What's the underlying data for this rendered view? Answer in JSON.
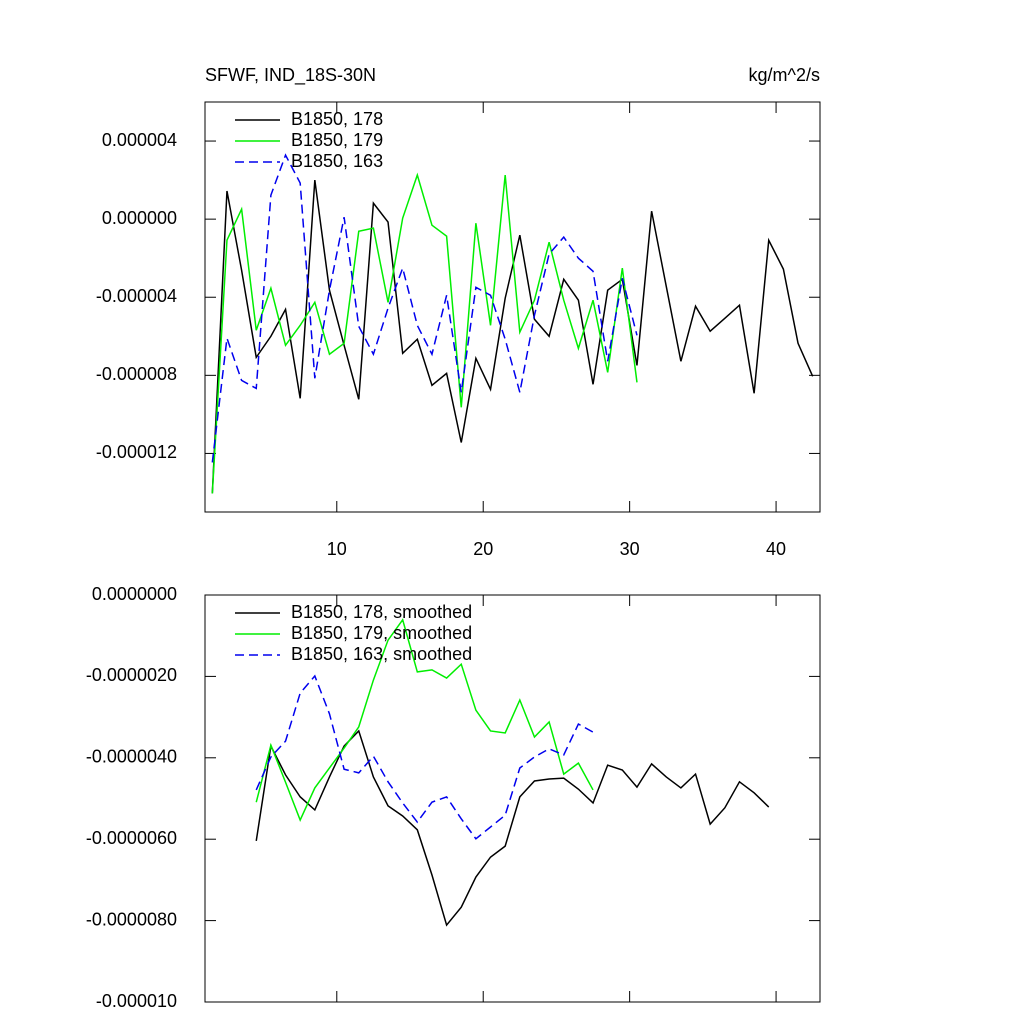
{
  "chart_data": [
    {
      "type": "line",
      "title": "SFWF, IND_18S-30N",
      "right_title": "kg/m^2/s",
      "xlim": [
        1,
        43
      ],
      "xticks": [
        10,
        20,
        30,
        40
      ],
      "show_xtick_labels": true,
      "ylim": [
        -1.5e-05,
        6e-06
      ],
      "yticks": [
        4e-06,
        {
          "value": 0,
          "label": "0.000000"
        },
        -4e-06,
        -8e-06,
        -1.2e-05
      ],
      "grid": false,
      "legend": "upper left",
      "series": [
        {
          "name": "B1850, 178",
          "color": "#000000",
          "line_style": "solid",
          "x": [
            1.5,
            2.5,
            3.5,
            4.5,
            5.5,
            6.5,
            7.5,
            8.5,
            9.5,
            10.5,
            11.5,
            12.5,
            13.5,
            14.5,
            15.5,
            16.5,
            17.5,
            18.5,
            19.5,
            20.5,
            21.5,
            22.5,
            23.5,
            24.5,
            25.5,
            26.5,
            27.5,
            28.5,
            29.5,
            30.5,
            31.5,
            32.5,
            33.5,
            34.5,
            35.5,
            36.5,
            37.5,
            38.5,
            39.5,
            40.5,
            41.5,
            42.5
          ],
          "values": [
            -1.405e-05,
            1.44e-06,
            -2.62e-06,
            -7.08e-06,
            -6e-06,
            -4.62e-06,
            -9.18e-06,
            2e-06,
            -3.64e-06,
            -6.46e-06,
            -9.23e-06,
            8.2e-07,
            -1.5e-07,
            -6.87e-06,
            -6.15e-06,
            -8.51e-06,
            -7.9e-06,
            -1.144e-05,
            -7.13e-06,
            -8.72e-06,
            -4.05e-06,
            -8.2e-07,
            -5.13e-06,
            -6e-06,
            -3.08e-06,
            -4.15e-06,
            -8.46e-06,
            -3.64e-06,
            -3.08e-06,
            -7.49e-06,
            4.1e-07,
            -3.44e-06,
            -7.28e-06,
            -4.46e-06,
            -5.74e-06,
            -5.08e-06,
            -4.41e-06,
            -8.92e-06,
            -1.08e-06,
            -2.56e-06,
            -6.36e-06,
            -8.05e-06
          ]
        },
        {
          "name": "B1850, 179",
          "color": "#00ee00",
          "line_style": "solid",
          "x": [
            1.5,
            2.5,
            3.5,
            4.5,
            5.5,
            6.5,
            7.5,
            8.5,
            9.5,
            10.5,
            11.5,
            12.5,
            13.5,
            14.5,
            15.5,
            16.5,
            17.5,
            18.5,
            19.5,
            20.5,
            21.5,
            22.5,
            23.5,
            24.5,
            25.5,
            26.5,
            27.5,
            28.5,
            29.5,
            30.5
          ],
          "values": [
            -1.405e-05,
            -1.08e-06,
            5.1e-07,
            -5.69e-06,
            -3.54e-06,
            -6.46e-06,
            -5.44e-06,
            -4.26e-06,
            -6.92e-06,
            -6.36e-06,
            -6.2e-07,
            -4.6e-07,
            -4.26e-06,
            5e-08,
            2.26e-06,
            -3.1e-07,
            -8.7e-07,
            -9.64e-06,
            -2.1e-07,
            -5.44e-06,
            2.26e-06,
            -5.79e-06,
            -4.15e-06,
            -1.18e-06,
            -4.15e-06,
            -6.62e-06,
            -4.15e-06,
            -7.85e-06,
            -2.51e-06,
            -8.36e-06
          ]
        },
        {
          "name": "B1850, 163",
          "color": "#0000ee",
          "line_style": "dashed",
          "x": [
            1.5,
            2.5,
            3.5,
            4.5,
            5.5,
            6.5,
            7.5,
            8.5,
            9.5,
            10.5,
            11.5,
            12.5,
            13.5,
            14.5,
            15.5,
            16.5,
            17.5,
            18.5,
            19.5,
            20.5,
            21.5,
            22.5,
            23.5,
            24.5,
            25.5,
            26.5,
            27.5,
            28.5,
            29.5,
            30.5
          ],
          "values": [
            -1.246e-05,
            -6.1e-06,
            -8.26e-06,
            -8.67e-06,
            1.23e-06,
            3.28e-06,
            1.85e-06,
            -8.15e-06,
            -3.64e-06,
            1e-07,
            -5.49e-06,
            -6.92e-06,
            -4.56e-06,
            -2.51e-06,
            -5.44e-06,
            -6.92e-06,
            -3.9e-06,
            -8.87e-06,
            -3.49e-06,
            -3.9e-06,
            -6.15e-06,
            -8.87e-06,
            -4.92e-06,
            -1.79e-06,
            -9.2e-07,
            -2e-06,
            -2.67e-06,
            -7.28e-06,
            -3.03e-06,
            -5.95e-06
          ]
        }
      ]
    },
    {
      "type": "line",
      "xlim": [
        1,
        43
      ],
      "xticks": [
        10,
        20,
        30,
        40
      ],
      "show_xtick_labels": false,
      "ylim": [
        -1e-05,
        0
      ],
      "yticks": [
        {
          "value": 0,
          "label": "0.0000000"
        },
        {
          "value": -2e-06,
          "label": "-0.0000020"
        },
        {
          "value": -4e-06,
          "label": "-0.0000040"
        },
        {
          "value": -6e-06,
          "label": "-0.0000060"
        },
        {
          "value": -8e-06,
          "label": "-0.0000080"
        },
        {
          "value": -1e-05,
          "label": "-0.000010"
        }
      ],
      "grid": false,
      "legend": "upper left",
      "series": [
        {
          "name": "B1850, 178, smoothed",
          "color": "#000000",
          "line_style": "solid",
          "x": [
            4.5,
            5.5,
            6.5,
            7.5,
            8.5,
            9.5,
            10.5,
            11.5,
            12.5,
            13.5,
            14.5,
            15.5,
            16.5,
            17.5,
            18.5,
            19.5,
            20.5,
            21.5,
            22.5,
            23.5,
            24.5,
            25.5,
            26.5,
            27.5,
            28.5,
            29.5,
            30.5,
            31.5,
            32.5,
            33.5,
            34.5,
            35.5,
            36.5,
            37.5,
            38.5,
            39.5
          ],
          "values": [
            -6.04e-06,
            -3.71e-06,
            -4.42e-06,
            -4.96e-06,
            -5.28e-06,
            -4.47e-06,
            -3.71e-06,
            -3.34e-06,
            -4.47e-06,
            -5.18e-06,
            -5.43e-06,
            -5.77e-06,
            -6.88e-06,
            -8.11e-06,
            -7.67e-06,
            -6.93e-06,
            -6.44e-06,
            -6.17e-06,
            -4.96e-06,
            -4.57e-06,
            -4.52e-06,
            -4.5e-06,
            -4.77e-06,
            -5.11e-06,
            -4.18e-06,
            -4.3e-06,
            -4.72e-06,
            -4.15e-06,
            -4.47e-06,
            -4.74e-06,
            -4.4e-06,
            -5.63e-06,
            -5.23e-06,
            -4.59e-06,
            -4.86e-06,
            -5.21e-06
          ]
        },
        {
          "name": "B1850, 179, smoothed",
          "color": "#00ee00",
          "line_style": "solid",
          "x": [
            4.5,
            5.5,
            6.5,
            7.5,
            8.5,
            9.5,
            10.5,
            11.5,
            12.5,
            13.5,
            14.5,
            15.5,
            16.5,
            17.5,
            18.5,
            19.5,
            20.5,
            21.5,
            22.5,
            23.5,
            24.5,
            25.5,
            26.5,
            27.5
          ],
          "values": [
            -5.09e-06,
            -3.69e-06,
            -4.6e-06,
            -5.53e-06,
            -4.74e-06,
            -4.25e-06,
            -3.76e-06,
            -3.24e-06,
            -2.09e-06,
            -1.11e-06,
            -6.1e-07,
            -1.89e-06,
            -1.84e-06,
            -2.04e-06,
            -1.7e-06,
            -2.83e-06,
            -3.34e-06,
            -3.39e-06,
            -2.58e-06,
            -3.49e-06,
            -3.12e-06,
            -4.4e-06,
            -4.13e-06,
            -4.79e-06
          ]
        },
        {
          "name": "B1850, 163, smoothed",
          "color": "#0000ee",
          "line_style": "dashed",
          "x": [
            4.5,
            5.5,
            6.5,
            7.5,
            8.5,
            9.5,
            10.5,
            11.5,
            12.5,
            13.5,
            14.5,
            15.5,
            16.5,
            17.5,
            18.5,
            19.5,
            20.5,
            21.5,
            22.5,
            23.5,
            24.5,
            25.5,
            26.5,
            27.5
          ],
          "values": [
            -4.79e-06,
            -3.98e-06,
            -3.59e-06,
            -2.41e-06,
            -1.99e-06,
            -2.92e-06,
            -4.28e-06,
            -4.37e-06,
            -3.96e-06,
            -4.59e-06,
            -5.11e-06,
            -5.58e-06,
            -5.09e-06,
            -4.96e-06,
            -5.5e-06,
            -5.99e-06,
            -5.7e-06,
            -5.41e-06,
            -4.25e-06,
            -3.98e-06,
            -3.78e-06,
            -3.93e-06,
            -3.17e-06,
            -3.37e-06
          ]
        }
      ]
    }
  ]
}
